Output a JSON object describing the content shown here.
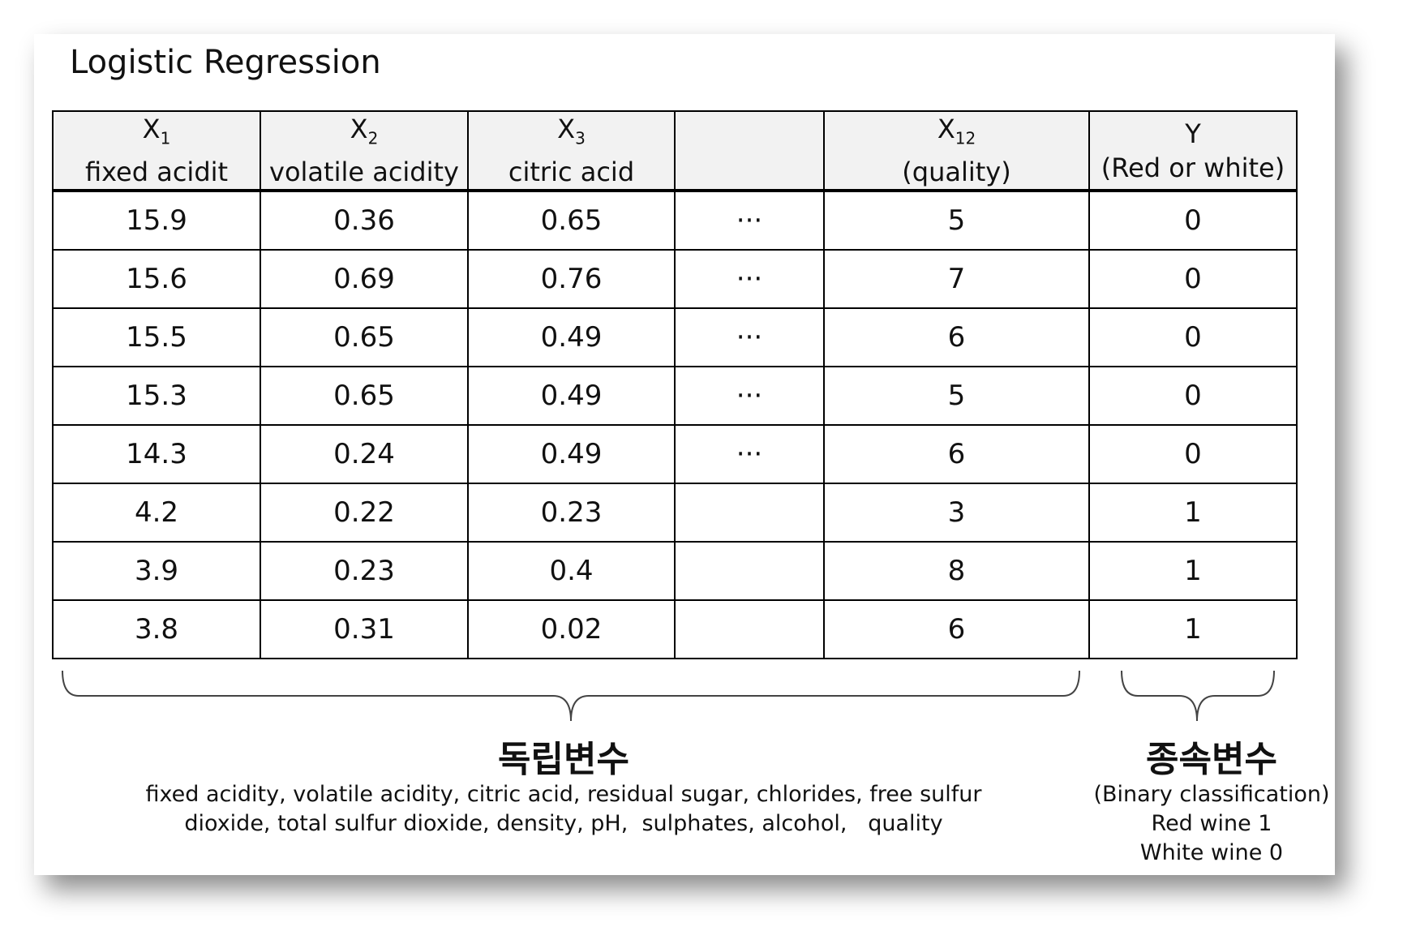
{
  "title": "Logistic Regression",
  "table": {
    "headers": [
      {
        "symbol": "X",
        "sub": "1",
        "name": "fixed acidit"
      },
      {
        "symbol": "X",
        "sub": "2",
        "name": "volatile acidity"
      },
      {
        "symbol": "X",
        "sub": "3",
        "name": "citric acid"
      },
      null,
      {
        "symbol": "X",
        "sub": "12",
        "name": "(quality)"
      },
      {
        "symbol": "Y",
        "name": "(Red or white)"
      }
    ],
    "rows": [
      [
        "15.9",
        "0.36",
        "0.65",
        "···",
        "5",
        "0"
      ],
      [
        "15.6",
        "0.69",
        "0.76",
        "···",
        "7",
        "0"
      ],
      [
        "15.5",
        "0.65",
        "0.49",
        "···",
        "6",
        "0"
      ],
      [
        "15.3",
        "0.65",
        "0.49",
        "···",
        "5",
        "0"
      ],
      [
        "14.3",
        "0.24",
        "0.49",
        "···",
        "6",
        "0"
      ],
      [
        "4.2",
        "0.22",
        "0.23",
        null,
        "3",
        "1"
      ],
      [
        "3.9",
        "0.23",
        "0.4",
        null,
        "8",
        "1"
      ],
      [
        "3.8",
        "0.31",
        "0.02",
        null,
        "6",
        "1"
      ]
    ]
  },
  "independent": {
    "label": "독립변수",
    "lines": [
      "fixed acidity, volatile acidity, citric acid, residual sugar, chlorides, free sulfur",
      "dioxide, total sulfur dioxide, density, pH,  sulphates, alcohol,   quality"
    ]
  },
  "dependent": {
    "label": "종속변수",
    "lines": [
      "(Binary classification)",
      "Red wine 1",
      "White wine 0"
    ]
  }
}
